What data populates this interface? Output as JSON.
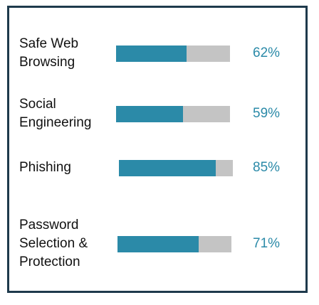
{
  "chart_data": {
    "type": "bar",
    "orientation": "horizontal",
    "categories": [
      "Safe Web\nBrowsing",
      "Social\nEngineering",
      "Phishing",
      "Password\nSelection &\nProtection"
    ],
    "values": [
      62,
      59,
      85,
      71
    ],
    "value_labels": [
      "62%",
      "59%",
      "85%",
      "71%"
    ],
    "xlim": [
      0,
      100
    ],
    "colors": {
      "fill": "#2b8aa8",
      "track": "#c4c4c4",
      "label": "#2b8aa8",
      "border": "#1e3a4c"
    },
    "title": "",
    "xlabel": "",
    "ylabel": ""
  }
}
